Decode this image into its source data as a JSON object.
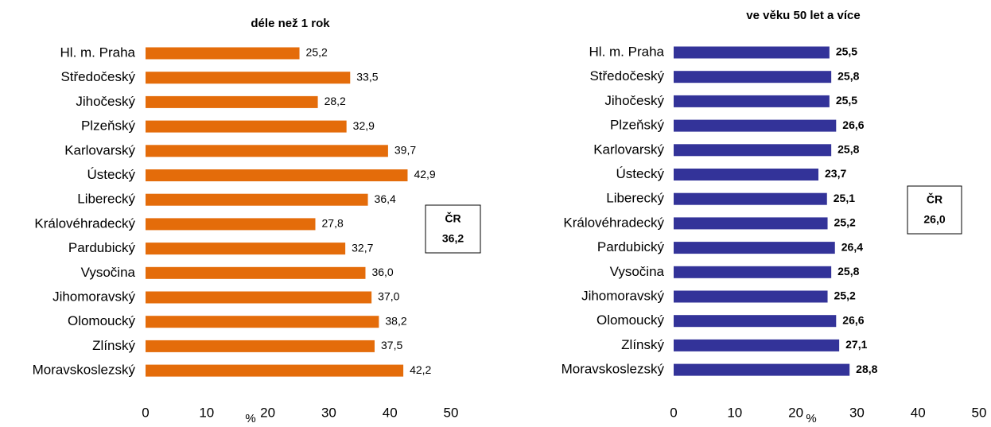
{
  "chart_data": [
    {
      "type": "barh",
      "title": "déle než 1 rok",
      "xlabel": "%",
      "color": "#e46c0a",
      "value_weight": "normal",
      "categories": [
        "Hl. m. Praha",
        "Středočeský",
        "Jihočeský",
        "Plzeňský",
        "Karlovarský",
        "Ústecký",
        "Liberecký",
        "Královéhradecký",
        "Pardubický",
        "Vysočina",
        "Jihomoravský",
        "Olomoucký",
        "Zlínský",
        "Moravskoslezský"
      ],
      "values": [
        25.2,
        33.5,
        28.2,
        32.9,
        39.7,
        42.9,
        36.4,
        27.8,
        32.7,
        36.0,
        37.0,
        38.2,
        37.5,
        42.2
      ],
      "value_labels": [
        "25,2",
        "33,5",
        "28,2",
        "32,9",
        "39,7",
        "42,9",
        "36,4",
        "27,8",
        "32,7",
        "36,0",
        "37,0",
        "38,2",
        "37,5",
        "42,2"
      ],
      "xlim": [
        0,
        50
      ],
      "xticks": [
        0,
        10,
        20,
        30,
        40,
        50
      ],
      "annotation": [
        "ČR",
        "36,2"
      ]
    },
    {
      "type": "barh",
      "title": "ve věku 50 let a více",
      "xlabel": "%",
      "color": "#333399",
      "value_weight": "bold",
      "categories": [
        "Hl. m. Praha",
        "Středočeský",
        "Jihočeský",
        "Plzeňský",
        "Karlovarský",
        "Ústecký",
        "Liberecký",
        "Královéhradecký",
        "Pardubický",
        "Vysočina",
        "Jihomoravský",
        "Olomoucký",
        "Zlínský",
        "Moravskoslezský"
      ],
      "values": [
        25.5,
        25.8,
        25.5,
        26.6,
        25.8,
        23.7,
        25.1,
        25.2,
        26.4,
        25.8,
        25.2,
        26.6,
        27.1,
        28.8
      ],
      "value_labels": [
        "25,5",
        "25,8",
        "25,5",
        "26,6",
        "25,8",
        "23,7",
        "25,1",
        "25,2",
        "26,4",
        "25,8",
        "25,2",
        "26,6",
        "27,1",
        "28,8"
      ],
      "xlim": [
        0,
        50
      ],
      "xticks": [
        0,
        10,
        20,
        30,
        40,
        50
      ],
      "annotation": [
        "ČR",
        "26,0"
      ]
    }
  ]
}
